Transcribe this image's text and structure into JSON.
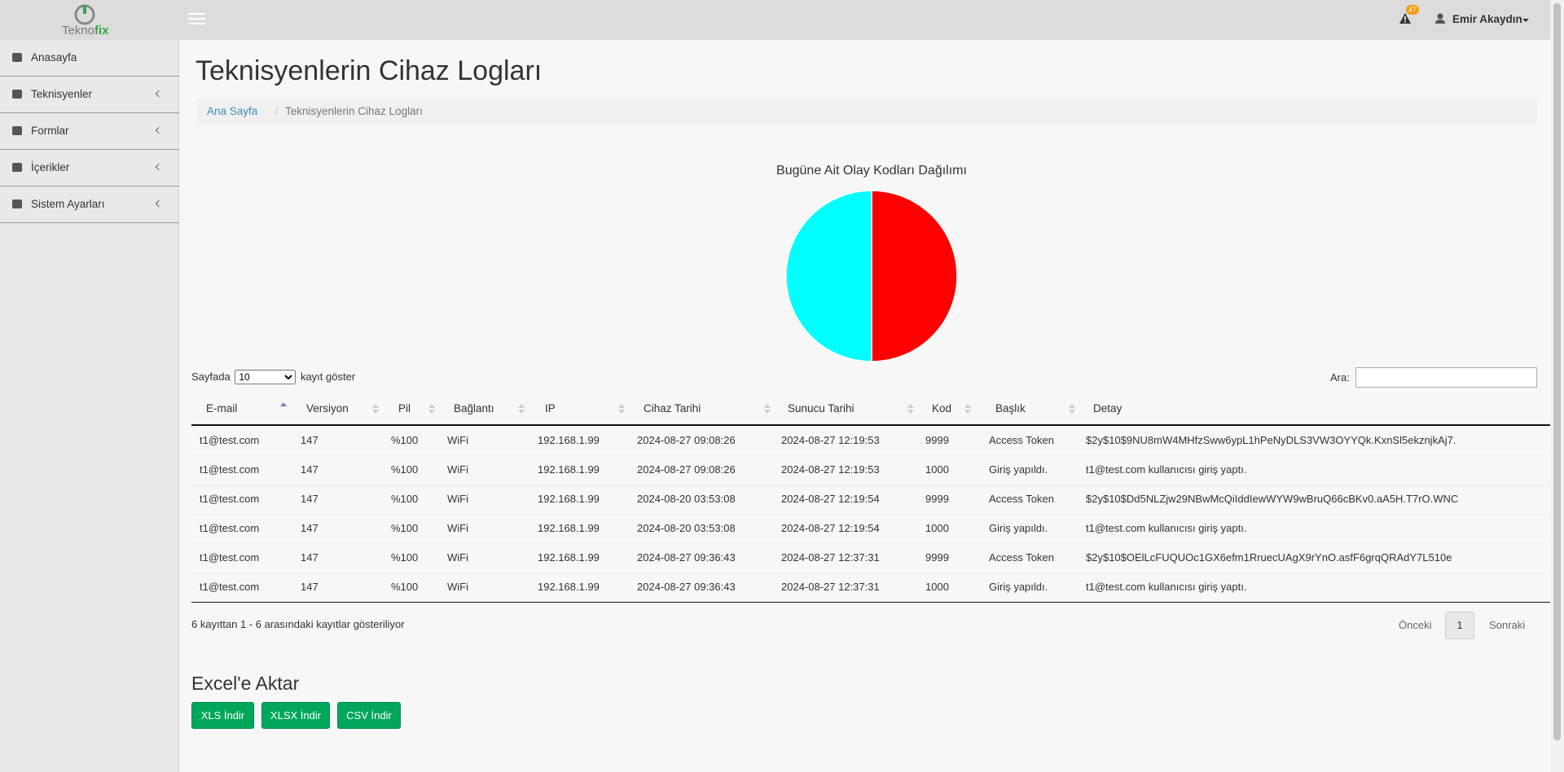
{
  "header": {
    "logo_main": "Tekno",
    "logo_accent": "fix",
    "notification_count": "47",
    "user": "Emir Akaydın"
  },
  "sidebar": [
    {
      "label": "Anasayfa"
    },
    {
      "label": "Teknisyenler"
    },
    {
      "label": "Formlar"
    },
    {
      "label": "İçerikler"
    },
    {
      "label": "Sistem Ayarları"
    }
  ],
  "page_title": "Teknisyenlerin Cihaz Logları",
  "breadcrumb": [
    "Ana Sayfa",
    "Teknisyenlerin Cihaz Logları"
  ],
  "chart_data": {
    "type": "pie",
    "title": "Bugüne Ait Olay Kodları Dağılımı",
    "values": [
      50,
      50
    ],
    "colors": [
      "#ff0000",
      "#00ffff"
    ]
  },
  "table_controls": {
    "length_prefix": "Sayfada",
    "length_value": "10",
    "length_suffix": "kayıt göster",
    "search_label": "Ara:"
  },
  "table": {
    "columns": [
      "E-mail",
      "Versiyon",
      "Pil",
      "Bağlantı",
      "IP",
      "Cihaz Tarihi",
      "Sunucu Tarihi",
      "Kod",
      "Başlık",
      "Detay"
    ],
    "rows": [
      [
        "t1@test.com",
        "147",
        "%100",
        "WiFi",
        "192.168.1.99",
        "2024-08-27 09:08:26",
        "2024-08-27 12:19:53",
        "9999",
        "Access Token",
        "$2y$10$9NU8mW4MHfzSww6ypL1hPeNyDLS3VW3OYYQk.KxnSl5ekznjkAj7."
      ],
      [
        "t1@test.com",
        "147",
        "%100",
        "WiFi",
        "192.168.1.99",
        "2024-08-27 09:08:26",
        "2024-08-27 12:19:53",
        "1000",
        "Giriş yapıldı.",
        "t1@test.com kullanıcısı giriş yaptı."
      ],
      [
        "t1@test.com",
        "147",
        "%100",
        "WiFi",
        "192.168.1.99",
        "2024-08-20 03:53:08",
        "2024-08-27 12:19:54",
        "9999",
        "Access Token",
        "$2y$10$Dd5NLZjw29NBwMcQiIddIewWYW9wBruQ66cBKv0.aA5H.T7rO.WNC"
      ],
      [
        "t1@test.com",
        "147",
        "%100",
        "WiFi",
        "192.168.1.99",
        "2024-08-20 03:53:08",
        "2024-08-27 12:19:54",
        "1000",
        "Giriş yapıldı.",
        "t1@test.com kullanıcısı giriş yaptı."
      ],
      [
        "t1@test.com",
        "147",
        "%100",
        "WiFi",
        "192.168.1.99",
        "2024-08-27 09:36:43",
        "2024-08-27 12:37:31",
        "9999",
        "Access Token",
        "$2y$10$OElLcFUQUOc1GX6efm1RruecUAgX9rYnO.asfF6grqQRAdY7L510e"
      ],
      [
        "t1@test.com",
        "147",
        "%100",
        "WiFi",
        "192.168.1.99",
        "2024-08-27 09:36:43",
        "2024-08-27 12:37:31",
        "1000",
        "Giriş yapıldı.",
        "t1@test.com kullanıcısı giriş yaptı."
      ]
    ]
  },
  "table_info": "6 kayıttan 1 - 6 arasındaki kayıtlar gösteriliyor",
  "pagination": [
    "Önceki",
    "1",
    "Sonraki"
  ],
  "export": {
    "title": "Excel'e Aktar",
    "buttons": [
      "XLS İndir",
      "XLSX İndir",
      "CSV İndir"
    ]
  }
}
